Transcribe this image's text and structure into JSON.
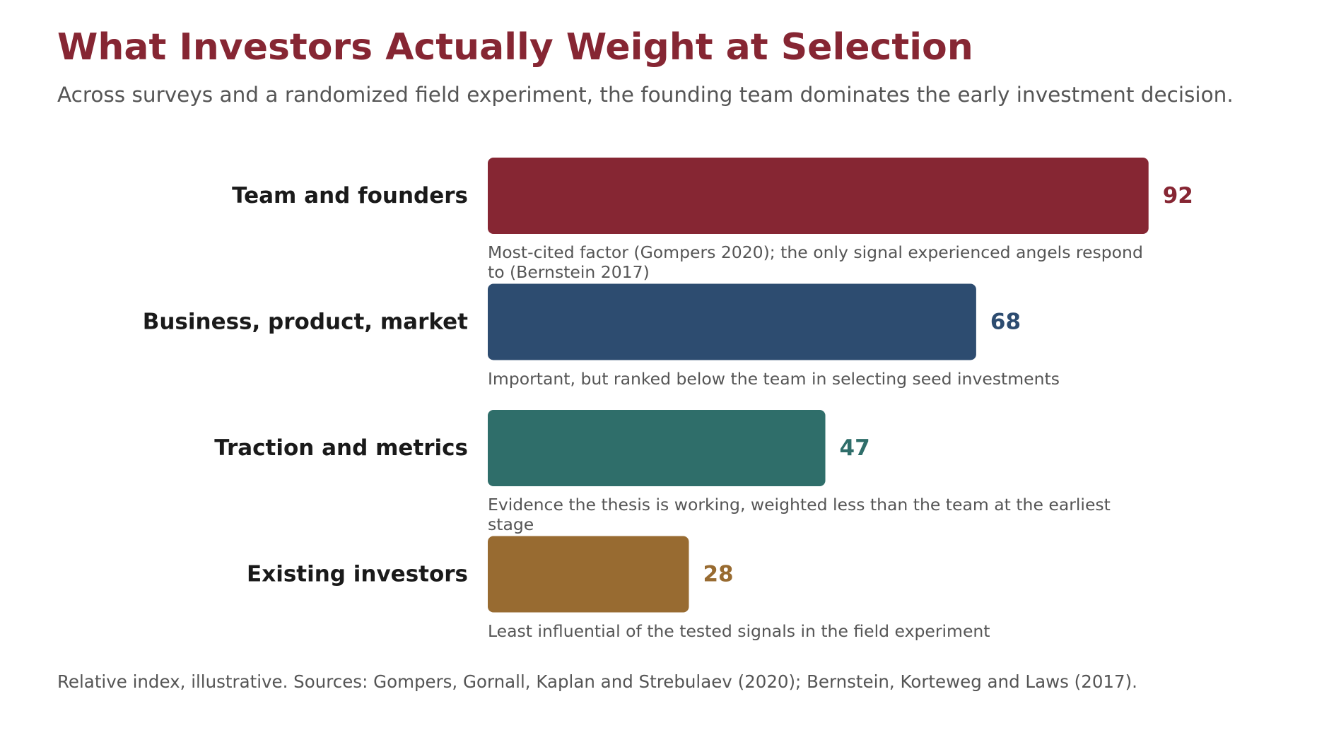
{
  "header": {
    "title": "What Investors Actually Weight at Selection",
    "subtitle": "Across surveys and a randomized field experiment, the founding team dominates the early investment decision."
  },
  "chart_data": {
    "type": "bar",
    "orientation": "horizontal",
    "categories": [
      "Team and founders",
      "Business, product, market",
      "Traction and metrics",
      "Existing investors"
    ],
    "values": [
      92,
      68,
      47,
      28
    ],
    "colors": [
      "#862633",
      "#2D4C70",
      "#2F6E6A",
      "#986B31"
    ],
    "annotations": [
      "Most-cited factor (Gompers 2020); the only signal experienced angels respond to (Bernstein 2017)",
      "Important, but ranked below the team in selecting seed investments",
      "Evidence the thesis is working, weighted less than the team at the earliest stage",
      "Least influential of the tested signals in the field experiment"
    ],
    "xlim": [
      0,
      100
    ],
    "grid": false,
    "legend": "none"
  },
  "footer": {
    "note": "Relative index, illustrative. Sources: Gompers, Gornall, Kaplan and Strebulaev (2020); Bernstein, Korteweg and Laws (2017)."
  }
}
